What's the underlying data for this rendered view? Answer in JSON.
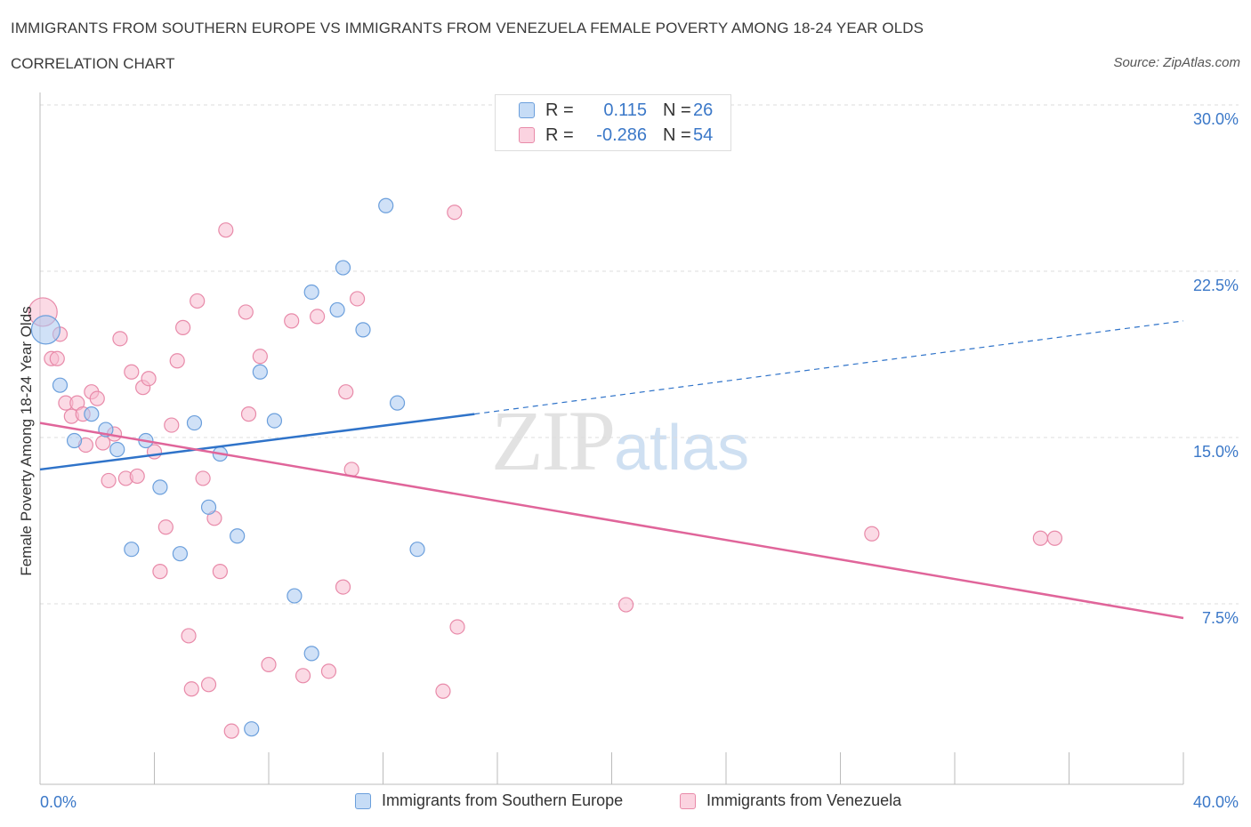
{
  "header": {
    "title": "IMMIGRANTS FROM SOUTHERN EUROPE VS IMMIGRANTS FROM VENEZUELA FEMALE POVERTY AMONG 18-24 YEAR OLDS",
    "subtitle": "CORRELATION CHART",
    "source": "Source: ZipAtlas.com"
  },
  "watermark": {
    "zip": "ZIP",
    "atlas": "atlas"
  },
  "legend_top": {
    "rows": [
      {
        "r_label": "R =",
        "r_value": "0.115",
        "n_label": "N =",
        "n_value": "26",
        "color": "#a9c8f0"
      },
      {
        "r_label": "R =",
        "r_value": "-0.286",
        "n_label": "N =",
        "n_value": "54",
        "color": "#f7bcd0"
      }
    ]
  },
  "legend_bottom": {
    "items": [
      {
        "label": "Immigrants from Southern Europe",
        "color": "#a9c8f0"
      },
      {
        "label": "Immigrants from Venezuela",
        "color": "#f7bcd0"
      }
    ]
  },
  "chart_data": {
    "type": "scatter",
    "ylabel": "Female Poverty Among 18-24 Year Olds",
    "xlim": [
      0,
      40
    ],
    "ylim": [
      0,
      30
    ],
    "x_tick_labels": [
      "0.0%",
      "40.0%"
    ],
    "y_tick_labels": [
      "30.0%",
      "22.5%",
      "15.0%",
      "7.5%"
    ],
    "y_ticks": [
      30,
      22.5,
      15,
      7.5
    ],
    "grid": true,
    "series": [
      {
        "name": "Immigrants from Southern Europe",
        "color": "#a9c8f0",
        "stroke": "#6b9fdc",
        "line_color": "#2f73c9",
        "trend": {
          "x_start": 0,
          "y_start": 14.2,
          "x_solid_end": 15.2,
          "y_solid_end": 16.7,
          "x_end": 40,
          "y_end": 20.9
        },
        "points": [
          [
            0.2,
            20.5
          ],
          [
            0.7,
            18.0
          ],
          [
            1.2,
            15.5
          ],
          [
            1.8,
            16.7
          ],
          [
            2.3,
            16.0
          ],
          [
            2.7,
            15.1
          ],
          [
            3.2,
            10.6
          ],
          [
            3.7,
            15.5
          ],
          [
            4.2,
            13.4
          ],
          [
            4.9,
            10.4
          ],
          [
            5.4,
            16.3
          ],
          [
            5.9,
            12.5
          ],
          [
            6.3,
            14.9
          ],
          [
            6.9,
            11.2
          ],
          [
            7.7,
            18.6
          ],
          [
            8.2,
            16.4
          ],
          [
            8.9,
            8.5
          ],
          [
            9.5,
            22.2
          ],
          [
            9.5,
            5.9
          ],
          [
            10.4,
            21.4
          ],
          [
            10.6,
            23.3
          ],
          [
            11.3,
            20.5
          ],
          [
            12.1,
            26.1
          ],
          [
            12.5,
            17.2
          ],
          [
            13.2,
            10.6
          ],
          [
            7.4,
            2.5
          ]
        ]
      },
      {
        "name": "Immigrants from Venezuela",
        "color": "#f7bcd0",
        "stroke": "#e88aa9",
        "line_color": "#e0659a",
        "trend": {
          "x_start": 0,
          "y_start": 16.3,
          "x_end": 40,
          "y_end": 7.5
        },
        "points": [
          [
            0.1,
            21.3
          ],
          [
            0.4,
            19.2
          ],
          [
            0.7,
            20.3
          ],
          [
            0.9,
            17.2
          ],
          [
            1.1,
            16.6
          ],
          [
            1.3,
            17.2
          ],
          [
            1.5,
            16.7
          ],
          [
            1.6,
            15.3
          ],
          [
            1.8,
            17.7
          ],
          [
            2.0,
            17.4
          ],
          [
            2.2,
            15.4
          ],
          [
            2.4,
            13.7
          ],
          [
            2.6,
            15.8
          ],
          [
            2.8,
            20.1
          ],
          [
            3.0,
            13.8
          ],
          [
            3.2,
            18.6
          ],
          [
            3.4,
            13.9
          ],
          [
            3.6,
            17.9
          ],
          [
            3.8,
            18.3
          ],
          [
            4.0,
            15.0
          ],
          [
            4.2,
            9.6
          ],
          [
            4.4,
            11.6
          ],
          [
            4.6,
            16.2
          ],
          [
            4.8,
            19.1
          ],
          [
            5.0,
            20.6
          ],
          [
            5.2,
            6.7
          ],
          [
            5.3,
            4.3
          ],
          [
            5.5,
            21.8
          ],
          [
            5.7,
            13.8
          ],
          [
            5.9,
            4.5
          ],
          [
            6.1,
            12.0
          ],
          [
            6.3,
            9.6
          ],
          [
            6.5,
            25.0
          ],
          [
            6.7,
            2.4
          ],
          [
            7.2,
            21.3
          ],
          [
            7.3,
            16.7
          ],
          [
            7.7,
            19.3
          ],
          [
            8.0,
            5.4
          ],
          [
            8.8,
            20.9
          ],
          [
            9.2,
            4.9
          ],
          [
            9.7,
            21.1
          ],
          [
            10.1,
            5.1
          ],
          [
            10.6,
            8.9
          ],
          [
            10.7,
            17.7
          ],
          [
            10.9,
            14.2
          ],
          [
            11.1,
            21.9
          ],
          [
            14.1,
            4.2
          ],
          [
            14.5,
            25.8
          ],
          [
            14.6,
            7.1
          ],
          [
            20.5,
            8.1
          ],
          [
            29.1,
            11.3
          ],
          [
            35.0,
            11.1
          ],
          [
            35.5,
            11.1
          ],
          [
            0.6,
            19.2
          ]
        ]
      }
    ]
  }
}
